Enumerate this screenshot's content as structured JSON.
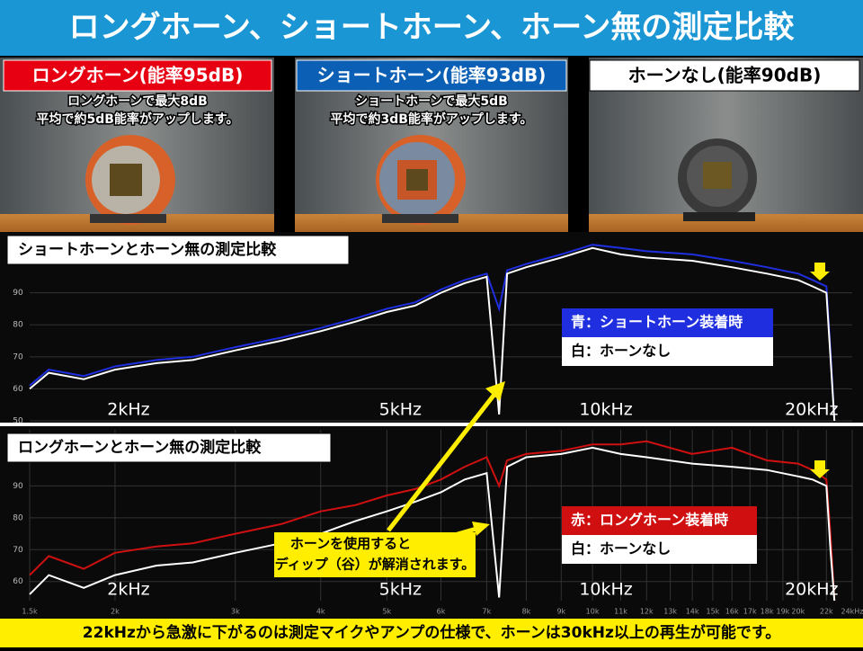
{
  "title": "ロングホーン、ショートホーン、ホーン無の測定比較",
  "panels": [
    {
      "label": "ロングホーン(能率95dB)",
      "desc": [
        "ロングホーンで最大8dB",
        "平均で約5dB能率がアップします。"
      ]
    },
    {
      "label": "ショートホーン(能率93dB)",
      "desc": [
        "ショートホーンで最大5dB",
        "平均で約3dB能率がアップします。"
      ]
    },
    {
      "label": "ホーンなし(能率90dB)"
    }
  ],
  "chart_data": [
    {
      "type": "line",
      "title": "ショートホーンとホーン無の測定比較",
      "log_x": true,
      "grid": true,
      "x": [
        1.5,
        1.6,
        1.8,
        2,
        2.3,
        2.6,
        3,
        3.5,
        4,
        4.5,
        5,
        5.5,
        6,
        6.5,
        7,
        7.3,
        7.5,
        8,
        9,
        10,
        11,
        12,
        14,
        16,
        18,
        20,
        21,
        22,
        22.3,
        22.6
      ],
      "series": [
        {
          "name": "青：ショートホーン装着時",
          "color": "#1f2fe0",
          "values": [
            61,
            66,
            64,
            67,
            69,
            70,
            73,
            76,
            79,
            82,
            85,
            87,
            91,
            94,
            96,
            85,
            97,
            99,
            102,
            105,
            104,
            103,
            102,
            100,
            98,
            96,
            94,
            92,
            72,
            50
          ]
        },
        {
          "name": "白：ホーンなし",
          "color": "#ffffff",
          "values": [
            60,
            65,
            63,
            66,
            68,
            69,
            72,
            75,
            78,
            81,
            84,
            86,
            90,
            93,
            95,
            52,
            96,
            98,
            101,
            104,
            102,
            101,
            100,
            98,
            96,
            94,
            92,
            90,
            70,
            50
          ]
        }
      ],
      "xlim": [
        1.5,
        24
      ],
      "ylim": [
        50,
        109
      ],
      "yticks": [
        50,
        60,
        70,
        80,
        90
      ],
      "xlabels": [
        {
          "value": 2,
          "label": "2kHz"
        },
        {
          "value": 5,
          "label": "5kHz"
        },
        {
          "value": 10,
          "label": "10kHz"
        },
        {
          "value": 20,
          "label": "20kHz"
        }
      ]
    },
    {
      "type": "line",
      "title": "ロングホーンとホーン無の測定比較",
      "log_x": true,
      "grid": true,
      "x": [
        1.5,
        1.6,
        1.8,
        2,
        2.3,
        2.6,
        3,
        3.5,
        4,
        4.5,
        5,
        5.5,
        6,
        6.5,
        7,
        7.3,
        7.5,
        8,
        9,
        10,
        11,
        12,
        14,
        16,
        18,
        20,
        21,
        22,
        22.3,
        22.6
      ],
      "series": [
        {
          "name": "赤：ロングホーン装着時",
          "color": "#d01010",
          "values": [
            62,
            68,
            64,
            69,
            71,
            72,
            75,
            78,
            82,
            84,
            87,
            89,
            92,
            96,
            99,
            90,
            98,
            100,
            101,
            103,
            103,
            104,
            100,
            102,
            98,
            97,
            95,
            92,
            75,
            54
          ]
        },
        {
          "name": "白：ホーンなし",
          "color": "#ffffff",
          "values": [
            56,
            62,
            58,
            62,
            65,
            66,
            69,
            72,
            75,
            79,
            82,
            85,
            88,
            92,
            94,
            55,
            96,
            99,
            100,
            102,
            100,
            99,
            97,
            96,
            95,
            93,
            92,
            90,
            70,
            54
          ]
        }
      ],
      "xlim": [
        1.5,
        24
      ],
      "ylim": [
        54,
        107.6
      ],
      "yticks": [
        60,
        70,
        80,
        90
      ],
      "xticks": [
        {
          "value": 1.5,
          "label": "1.5k"
        },
        {
          "value": 2,
          "label": "2k"
        },
        {
          "value": 3,
          "label": "3k"
        },
        {
          "value": 4,
          "label": "4k"
        },
        {
          "value": 5,
          "label": "5k"
        },
        {
          "value": 6,
          "label": "6k"
        },
        {
          "value": 7,
          "label": "7k"
        },
        {
          "value": 8,
          "label": "8k"
        },
        {
          "value": 9,
          "label": "9k"
        },
        {
          "value": 10,
          "label": "10k"
        },
        {
          "value": 11,
          "label": "11k"
        },
        {
          "value": 12,
          "label": "12k"
        },
        {
          "value": 13,
          "label": "13k"
        },
        {
          "value": 14,
          "label": "14k"
        },
        {
          "value": 15,
          "label": "15k"
        },
        {
          "value": 16,
          "label": "16k"
        },
        {
          "value": 17,
          "label": "17k"
        },
        {
          "value": 18,
          "label": "18k"
        },
        {
          "value": 19,
          "label": "19k"
        },
        {
          "value": 20,
          "label": "20k"
        },
        {
          "value": 22,
          "label": "22k"
        },
        {
          "value": 24,
          "label": "24kHz"
        }
      ],
      "xlabels": [
        {
          "value": 2,
          "label": "2kHz"
        },
        {
          "value": 5,
          "label": "5kHz"
        },
        {
          "value": 10,
          "label": "10kHz"
        },
        {
          "value": 20,
          "label": "20kHz"
        }
      ],
      "annotation": [
        "ホーンを使用すると",
        "ディップ（谷）が解消されます。"
      ]
    }
  ],
  "footer": "22kHzから急激に下がるのは測定マイクやアンプの仕様で、ホーンは30kHz以上の再生が可能です。"
}
